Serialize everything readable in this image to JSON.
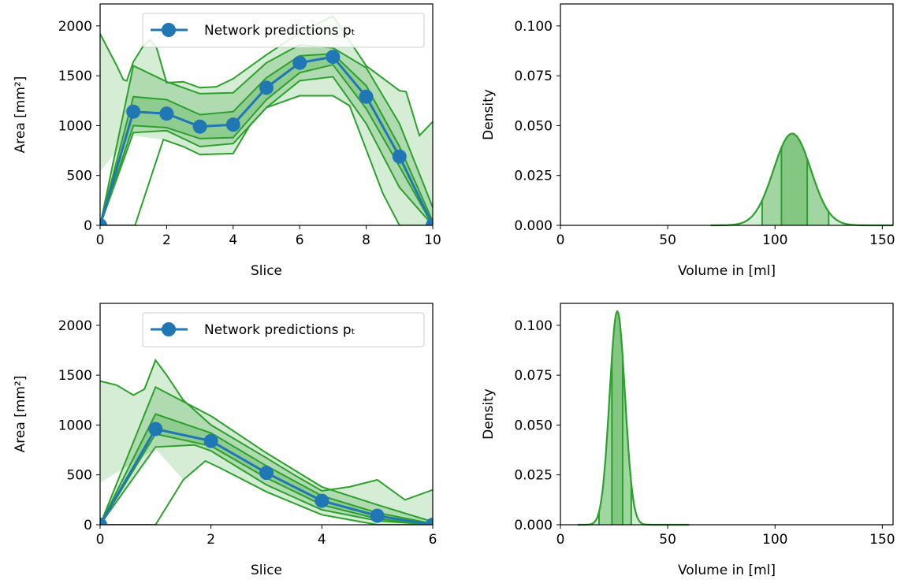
{
  "colors": {
    "prediction_line": "#1f77b4",
    "band_line": "#2ca02c",
    "band_fill": "#2ca02c",
    "axis": "#000000"
  },
  "chart_data": [
    {
      "type": "line",
      "panel": "top-left",
      "xlabel": "Slice",
      "ylabel": "Area [mm²]",
      "xlim": [
        0,
        10
      ],
      "ylim": [
        0,
        2220
      ],
      "xticks": [
        0,
        2,
        4,
        6,
        8,
        10
      ],
      "yticks": [
        0,
        500,
        1000,
        1500,
        2000
      ],
      "legend": {
        "placement": "top-center",
        "label": "Network predictions pₜ"
      },
      "predictions": {
        "name": "Network predictions pₜ",
        "x": [
          0,
          1,
          2,
          3,
          4,
          5,
          6,
          7,
          8,
          9,
          10
        ],
        "y": [
          0,
          1140,
          1120,
          990,
          1010,
          1380,
          1630,
          1690,
          1290,
          690,
          0
        ]
      },
      "bands": {
        "outer_upper": [
          [
            0,
            1920
          ],
          [
            0.5,
            1600
          ],
          [
            0.7,
            1460
          ],
          [
            0.8,
            1450
          ],
          [
            1,
            1640
          ],
          [
            1.3,
            1800
          ],
          [
            1.5,
            1860
          ],
          [
            1.7,
            1780
          ],
          [
            2,
            1430
          ],
          [
            2.5,
            1440
          ],
          [
            3,
            1380
          ],
          [
            3.5,
            1390
          ],
          [
            4,
            1470
          ],
          [
            5,
            1710
          ],
          [
            6,
            1930
          ],
          [
            7,
            2100
          ],
          [
            8,
            1600
          ],
          [
            9,
            1350
          ],
          [
            9.2,
            1340
          ],
          [
            9.6,
            900
          ],
          [
            10,
            1040
          ]
        ],
        "upper2": [
          [
            0,
            0
          ],
          [
            1,
            1600
          ],
          [
            2,
            1440
          ],
          [
            3,
            1320
          ],
          [
            4,
            1330
          ],
          [
            5,
            1630
          ],
          [
            6,
            1810
          ],
          [
            7,
            1780
          ],
          [
            8,
            1580
          ],
          [
            9,
            1020
          ],
          [
            10,
            180
          ]
        ],
        "upper1": [
          [
            0,
            0
          ],
          [
            1,
            1290
          ],
          [
            2,
            1260
          ],
          [
            3,
            1110
          ],
          [
            4,
            1140
          ],
          [
            5,
            1480
          ],
          [
            6,
            1700
          ],
          [
            7,
            1720
          ],
          [
            8,
            1400
          ],
          [
            9,
            790
          ],
          [
            10,
            40
          ]
        ],
        "lower1": [
          [
            0,
            0
          ],
          [
            1,
            1000
          ],
          [
            2,
            980
          ],
          [
            3,
            870
          ],
          [
            4,
            880
          ],
          [
            5,
            1260
          ],
          [
            6,
            1530
          ],
          [
            7,
            1610
          ],
          [
            8,
            1170
          ],
          [
            9,
            590
          ],
          [
            10,
            0
          ]
        ],
        "lower2": [
          [
            0,
            0
          ],
          [
            1,
            930
          ],
          [
            2,
            950
          ],
          [
            3,
            790
          ],
          [
            4,
            820
          ],
          [
            5,
            1180
          ],
          [
            6,
            1450
          ],
          [
            7,
            1490
          ],
          [
            8,
            1020
          ],
          [
            9,
            380
          ],
          [
            10,
            0
          ]
        ],
        "outer_lower": [
          [
            0,
            0
          ],
          [
            1.05,
            0
          ],
          [
            1.9,
            860
          ],
          [
            2.5,
            790
          ],
          [
            3,
            710
          ],
          [
            4,
            720
          ],
          [
            4.5,
            1000
          ],
          [
            5,
            1180
          ],
          [
            6,
            1300
          ],
          [
            7,
            1300
          ],
          [
            7.5,
            1200
          ],
          [
            8,
            760
          ],
          [
            8.5,
            320
          ],
          [
            9,
            0
          ],
          [
            10,
            0
          ]
        ],
        "outer_fill_lower": [
          [
            0,
            540
          ],
          [
            0.5,
            750
          ],
          [
            1,
            900
          ],
          [
            1.9,
            860
          ],
          [
            2.5,
            790
          ],
          [
            3,
            710
          ],
          [
            4,
            720
          ],
          [
            4.5,
            1000
          ],
          [
            5,
            1180
          ],
          [
            6,
            1300
          ],
          [
            7,
            1300
          ],
          [
            7.5,
            1200
          ],
          [
            8,
            760
          ],
          [
            8.5,
            320
          ],
          [
            9,
            0
          ],
          [
            10,
            0
          ]
        ]
      }
    },
    {
      "type": "area",
      "panel": "top-right",
      "xlabel": "Volume in [ml]",
      "ylabel": "Density",
      "xlim": [
        0,
        155
      ],
      "ylim": [
        0,
        0.111
      ],
      "xticks": [
        0,
        50,
        100,
        150
      ],
      "yticks": [
        0,
        0.025,
        0.05,
        0.075,
        0.1
      ],
      "ytick_labels": [
        "0.000",
        "0.025",
        "0.050",
        "0.075",
        "0.100"
      ],
      "density": {
        "mean": 108,
        "sd": 8.7,
        "peak": 0.046,
        "support": [
          70,
          155
        ]
      },
      "quantile_lines": [
        94,
        103,
        115,
        125
      ],
      "inner_band": [
        94,
        125
      ]
    },
    {
      "type": "line",
      "panel": "bottom-left",
      "xlabel": "Slice",
      "ylabel": "Area [mm²]",
      "xlim": [
        0,
        6
      ],
      "ylim": [
        0,
        2220
      ],
      "xticks": [
        0,
        2,
        4,
        6
      ],
      "yticks": [
        0,
        500,
        1000,
        1500,
        2000
      ],
      "legend": {
        "placement": "top-center",
        "label": "Network predictions pₜ"
      },
      "predictions": {
        "name": "Network predictions pₜ",
        "x": [
          0,
          1,
          2,
          3,
          4,
          5,
          6
        ],
        "y": [
          0,
          960,
          840,
          520,
          240,
          90,
          0
        ]
      },
      "bands": {
        "outer_upper": [
          [
            0,
            1440
          ],
          [
            0.3,
            1400
          ],
          [
            0.6,
            1300
          ],
          [
            0.8,
            1360
          ],
          [
            1,
            1650
          ],
          [
            1.2,
            1500
          ],
          [
            1.5,
            1250
          ],
          [
            2,
            1000
          ],
          [
            3,
            670
          ],
          [
            3.5,
            500
          ],
          [
            4,
            340
          ],
          [
            4.5,
            380
          ],
          [
            5,
            450
          ],
          [
            5.5,
            250
          ],
          [
            6,
            350
          ]
        ],
        "upper2": [
          [
            0,
            0
          ],
          [
            1,
            1380
          ],
          [
            2,
            1090
          ],
          [
            3,
            720
          ],
          [
            4,
            380
          ],
          [
            5,
            200
          ],
          [
            6,
            30
          ]
        ],
        "upper1": [
          [
            0,
            0
          ],
          [
            1,
            1110
          ],
          [
            2,
            920
          ],
          [
            3,
            590
          ],
          [
            4,
            290
          ],
          [
            5,
            120
          ],
          [
            6,
            10
          ]
        ],
        "lower1": [
          [
            0,
            0
          ],
          [
            1,
            910
          ],
          [
            2,
            790
          ],
          [
            3,
            470
          ],
          [
            4,
            200
          ],
          [
            5,
            60
          ],
          [
            6,
            0
          ]
        ],
        "lower2": [
          [
            0,
            0
          ],
          [
            1,
            780
          ],
          [
            1.7,
            800
          ],
          [
            2,
            740
          ],
          [
            3,
            400
          ],
          [
            4,
            150
          ],
          [
            5,
            40
          ],
          [
            6,
            0
          ]
        ],
        "outer_lower": [
          [
            0,
            0
          ],
          [
            0.5,
            0
          ],
          [
            1,
            0
          ],
          [
            1.5,
            450
          ],
          [
            1.9,
            640
          ],
          [
            2.2,
            560
          ],
          [
            3,
            330
          ],
          [
            4,
            100
          ],
          [
            5,
            0
          ],
          [
            6,
            0
          ]
        ],
        "outer_fill_lower": [
          [
            0,
            420
          ],
          [
            0.5,
            590
          ],
          [
            1,
            760
          ],
          [
            1.5,
            450
          ],
          [
            1.9,
            640
          ],
          [
            2.2,
            560
          ],
          [
            3,
            330
          ],
          [
            4,
            100
          ],
          [
            5,
            0
          ],
          [
            6,
            0
          ]
        ]
      }
    },
    {
      "type": "area",
      "panel": "bottom-right",
      "xlabel": "Volume in [ml]",
      "ylabel": "Density",
      "xlim": [
        0,
        155
      ],
      "ylim": [
        0,
        0.111
      ],
      "xticks": [
        0,
        50,
        100,
        150
      ],
      "yticks": [
        0,
        0.025,
        0.05,
        0.075,
        0.1
      ],
      "ytick_labels": [
        "0.000",
        "0.025",
        "0.050",
        "0.075",
        "0.100"
      ],
      "density": {
        "mean": 26.5,
        "sd": 3.6,
        "peak": 0.107,
        "support": [
          8,
          60
        ]
      },
      "quantile_lines": [
        18,
        24,
        29,
        33
      ],
      "inner_band": [
        18,
        33
      ]
    }
  ]
}
